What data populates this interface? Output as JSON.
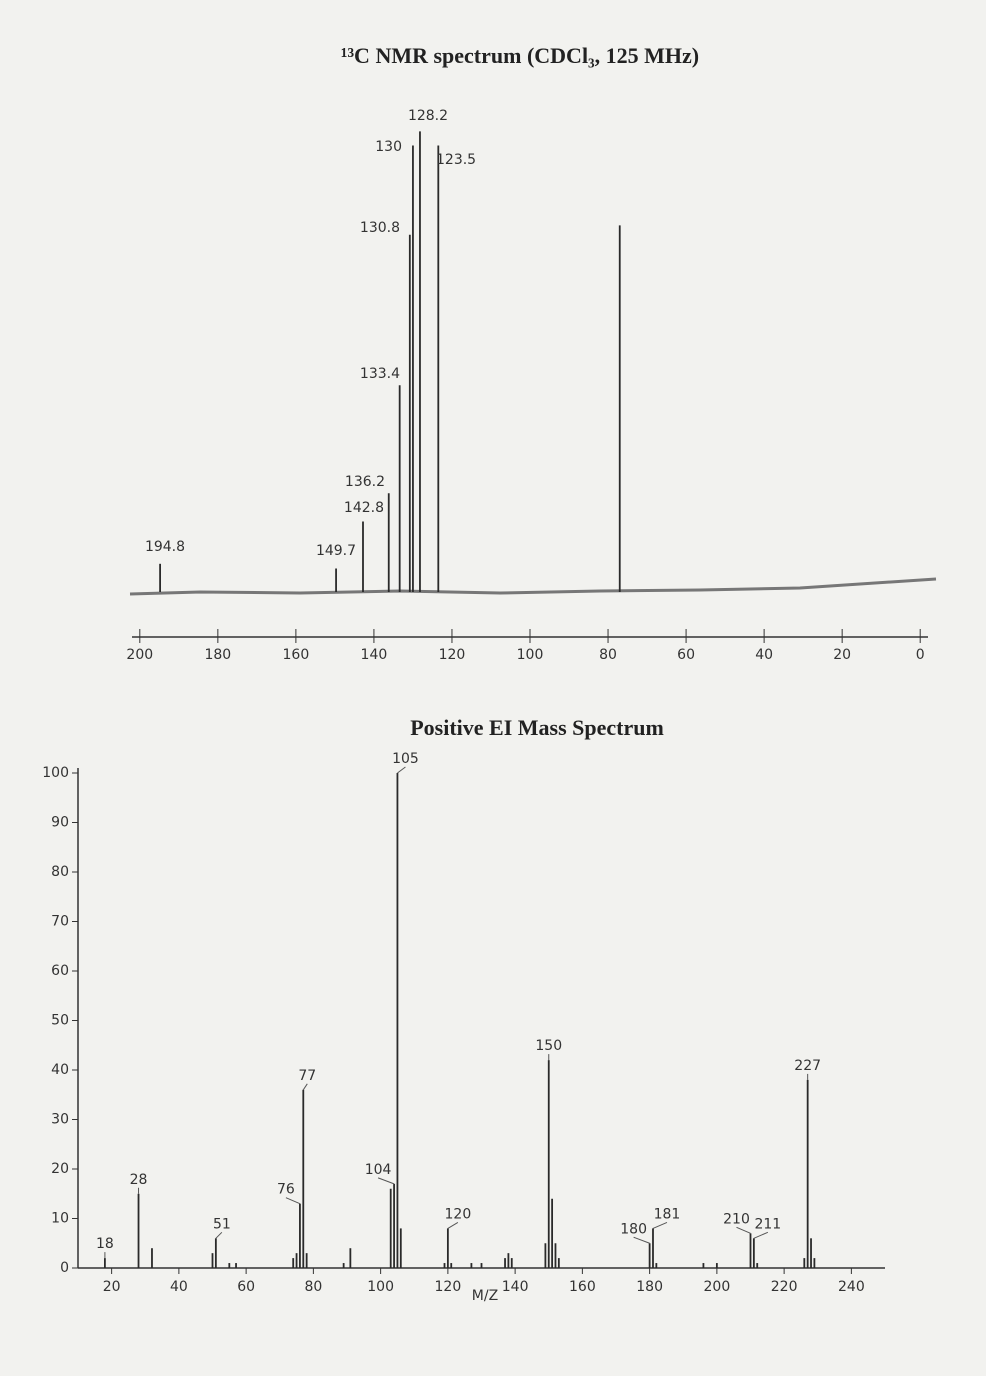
{
  "chart_data": [
    {
      "type": "stem",
      "title": "¹³C NMR spectrum (CDCl₃, 125 MHz)",
      "xlim": [
        202,
        -2
      ],
      "xticks": [
        200,
        180,
        160,
        140,
        120,
        100,
        80,
        60,
        40,
        20,
        0
      ],
      "ylim": [
        0,
        100
      ],
      "series": [
        {
          "x": [
            194.8,
            149.7,
            142.8,
            136.2,
            133.4,
            130.8,
            130.0,
            128.2,
            123.5
          ],
          "values": [
            6,
            5,
            15,
            21,
            44,
            76,
            95,
            98,
            95
          ],
          "show_labels": true,
          "color": "#2a2a2a"
        },
        {
          "x": [
            77.0
          ],
          "values": [
            78
          ],
          "show_labels": false,
          "color": "#2a2a2a"
        }
      ]
    },
    {
      "type": "stem",
      "title": "Positive EI Mass Spectrum",
      "x_label": "M/Z",
      "xlim": [
        10,
        250
      ],
      "xticks": [
        20,
        40,
        60,
        80,
        100,
        120,
        140,
        160,
        180,
        200,
        220,
        240
      ],
      "ylim": [
        0,
        100
      ],
      "yticks": [
        0,
        10,
        20,
        30,
        40,
        50,
        60,
        70,
        80,
        90,
        100
      ],
      "series": [
        {
          "x": [
            18,
            28,
            51,
            76,
            77,
            104,
            105,
            120,
            150,
            180,
            181,
            210,
            211,
            227
          ],
          "values": [
            2,
            15,
            6,
            13,
            36,
            17,
            100,
            8,
            42,
            5,
            8,
            7,
            6,
            38
          ],
          "show_labels": true,
          "color": "#2a2a2a"
        },
        {
          "x": [
            32,
            50,
            55,
            57,
            74,
            75,
            78,
            89,
            91,
            103,
            106,
            119,
            121,
            127,
            130,
            137,
            138,
            139,
            149,
            151,
            152,
            153,
            182,
            196,
            200,
            212,
            226,
            228,
            229
          ],
          "values": [
            4,
            3,
            1,
            1,
            2,
            3,
            3,
            1,
            4,
            16,
            8,
            1,
            1,
            1,
            1,
            2,
            3,
            2,
            5,
            14,
            5,
            2,
            1,
            1,
            1,
            1,
            2,
            6,
            2
          ],
          "show_labels": false,
          "color": "#2a2a2a"
        }
      ]
    }
  ]
}
